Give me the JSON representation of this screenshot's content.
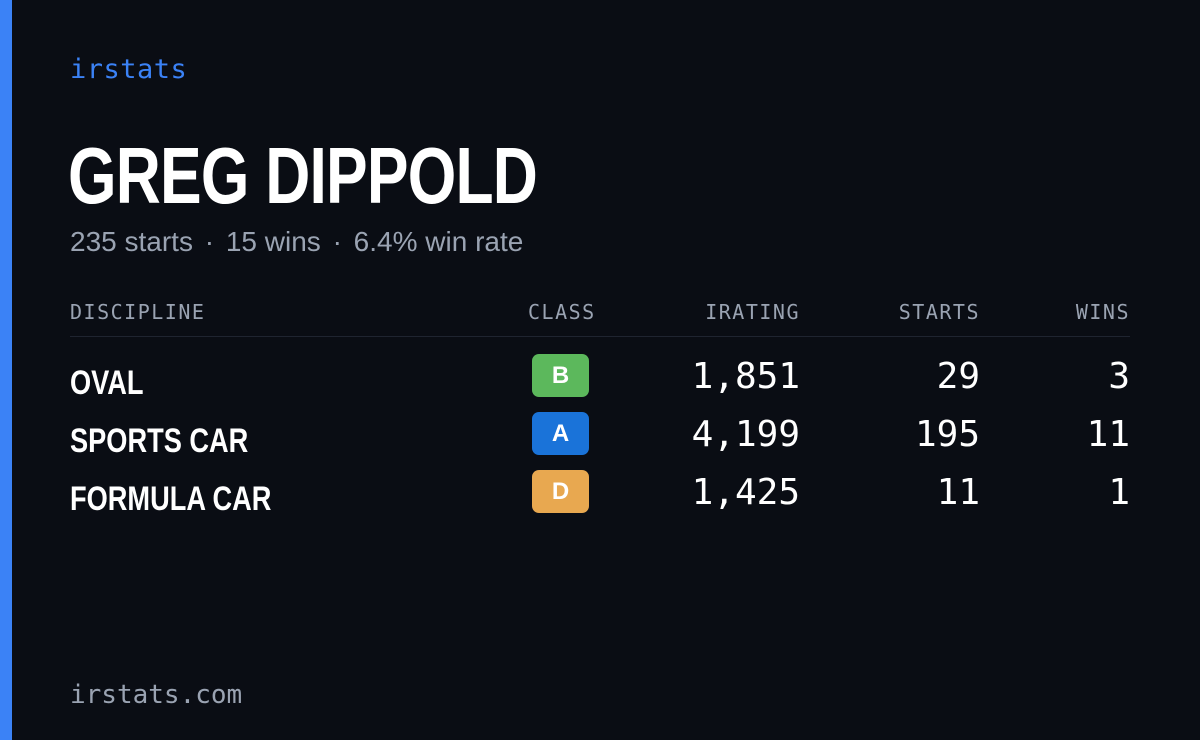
{
  "brand": "irstats",
  "driver": {
    "name": "GREG DIPPOLD",
    "summary": {
      "starts": "235 starts",
      "wins": "15 wins",
      "win_rate": "6.4% win rate",
      "separator": "·"
    }
  },
  "table": {
    "headers": {
      "discipline": "DISCIPLINE",
      "class": "CLASS",
      "irating": "IRATING",
      "starts": "STARTS",
      "wins": "WINS"
    },
    "rows": [
      {
        "discipline": "OVAL",
        "class": "B",
        "class_color": "#5cb85c",
        "irating": "1,851",
        "starts": "29",
        "wins": "3"
      },
      {
        "discipline": "SPORTS CAR",
        "class": "A",
        "class_color": "#1a73d9",
        "irating": "4,199",
        "starts": "195",
        "wins": "11"
      },
      {
        "discipline": "FORMULA CAR",
        "class": "D",
        "class_color": "#e8a850",
        "irating": "1,425",
        "starts": "11",
        "wins": "1"
      }
    ]
  },
  "footer": "irstats.com",
  "colors": {
    "accent": "#3b82f6",
    "background": "#0a0d14",
    "muted_text": "#9aa3b2"
  }
}
